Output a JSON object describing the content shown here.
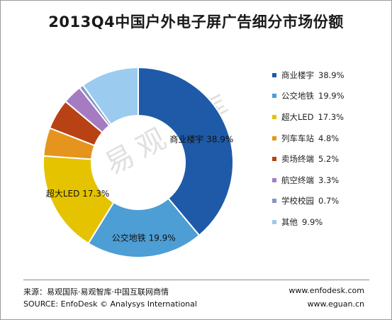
{
  "chart_data": {
    "type": "pie",
    "variant": "donut",
    "title": "2013Q4中国户外电子屏广告细分市场份额",
    "categories": [
      "商业楼宇",
      "公交地铁",
      "超大LED",
      "列车车站",
      "卖场终端",
      "航空终端",
      "学校校园",
      "其他"
    ],
    "values": [
      38.9,
      19.9,
      17.3,
      4.8,
      5.2,
      3.3,
      0.7,
      9.9
    ],
    "value_labels": [
      "38.9%",
      "19.9%",
      "17.3%",
      "4.8%",
      "5.2%",
      "3.3%",
      "0.7%",
      "9.9%"
    ],
    "colors": [
      "#1f5aa8",
      "#4d9ed4",
      "#e5c300",
      "#e5951d",
      "#b84214",
      "#a57cc2",
      "#8398c3",
      "#9bcbef"
    ],
    "legend_position": "right",
    "slice_labels": [
      {
        "series": "商业楼宇",
        "text": "商业楼宇  38.9%"
      },
      {
        "series": "公交地铁",
        "text": "公交地铁  19.9%"
      },
      {
        "series": "超大LED",
        "text": "超大LED  17.3%"
      }
    ]
  },
  "watermark": "易观智库",
  "footer": {
    "source_cn": "来源：易观国际·易观智库·中国互联网商情",
    "source_en": "SOURCE: EnfoDesk © Analysys International",
    "url_1": "www.enfodesk.com",
    "url_2": "www.eguan.cn"
  }
}
